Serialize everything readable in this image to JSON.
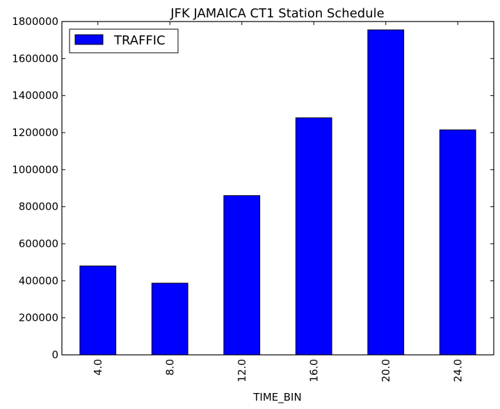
{
  "chart_data": {
    "type": "bar",
    "title": "JFK JAMAICA CT1 Station Schedule",
    "xlabel": "TIME_BIN",
    "ylabel": "",
    "categories": [
      "4.0",
      "8.0",
      "12.0",
      "16.0",
      "20.0",
      "24.0"
    ],
    "series": [
      {
        "name": "TRAFFIC",
        "values": [
          480000,
          387000,
          860000,
          1280000,
          1755000,
          1215000
        ],
        "color": "#0000ff"
      }
    ],
    "ylim": [
      0,
      1800000
    ],
    "yticks": [
      0,
      200000,
      400000,
      600000,
      800000,
      1000000,
      1200000,
      1400000,
      1600000,
      1800000
    ],
    "ytick_labels": [
      "0",
      "200000",
      "400000",
      "600000",
      "800000",
      "1000000",
      "1200000",
      "1400000",
      "1600000",
      "1800000"
    ],
    "grid": false,
    "legend_position": "top-left"
  }
}
